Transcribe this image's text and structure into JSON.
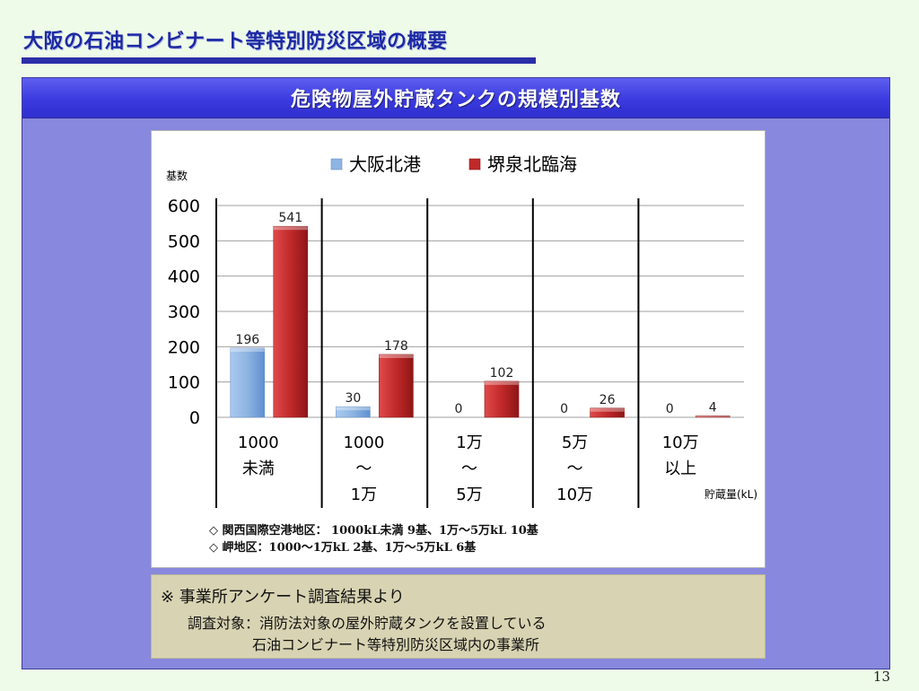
{
  "slide": {
    "title": "大阪の石油コンビナート等特別防災区域の概要",
    "page_number": "13"
  },
  "panel": {
    "header": "危険物屋外貯蔵タンクの規模別基数"
  },
  "colors": {
    "series_1": "#8db4e2",
    "series_2": "#c0292a",
    "panel_bg": "#8888de",
    "header_bg": "#3a3adf"
  },
  "chart_data": {
    "type": "bar",
    "ylabel": "基数",
    "xlabel": "貯蔵量(kL)",
    "ylim": [
      0,
      600
    ],
    "yticks": [
      0,
      100,
      200,
      300,
      400,
      500,
      600
    ],
    "grid": true,
    "legend": "top",
    "categories": [
      [
        "1000",
        "未満"
      ],
      [
        "1000",
        "～",
        "1万"
      ],
      [
        "1万",
        "～",
        "5万"
      ],
      [
        "5万",
        "～",
        "10万"
      ],
      [
        "10万",
        "以上"
      ]
    ],
    "series": [
      {
        "name": "大阪北港",
        "values": [
          196,
          30,
          0,
          0,
          0
        ]
      },
      {
        "name": "堺泉北臨海",
        "values": [
          541,
          178,
          102,
          26,
          4
        ]
      }
    ]
  },
  "notes": [
    "◇ 関西国際空港地区： 1000kL未満  9基、1万～5万kL  10基",
    "◇ 岬地区：1000～1万kL  2基、1万～5万kL  6基"
  ],
  "source_note": {
    "heading": "※ 事業所アンケート調査結果より",
    "line1": "調査対象：消防法対象の屋外貯蔵タンクを設置している",
    "line2": "石油コンビナート等特別防災区域内の事業所"
  }
}
